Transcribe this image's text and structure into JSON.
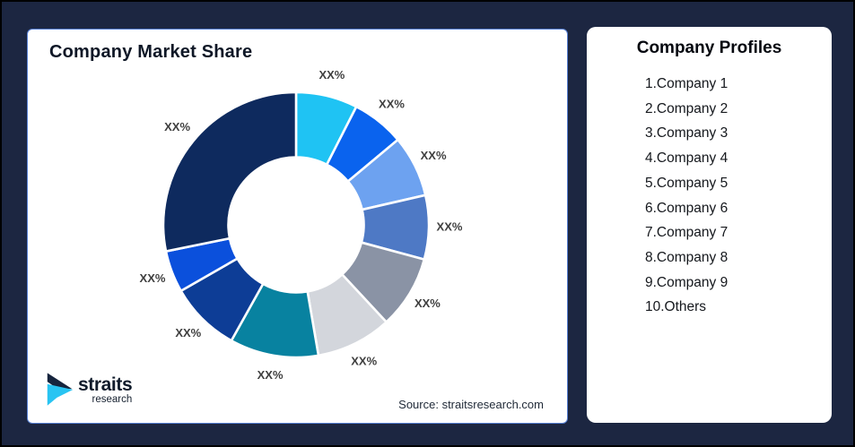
{
  "window": {
    "background": "#1C2641",
    "frame_border": "#000000"
  },
  "market_share_card": {
    "title": "Company Market Share",
    "source_note": "Source: straitsresearch.com",
    "border_color": "#567FD3",
    "logo": {
      "brand": "straits",
      "sub_brand": "research",
      "accent_color": "#29C4F2",
      "dark_color": "#16243D"
    }
  },
  "profiles_card": {
    "title": "Company Profiles",
    "items": [
      "1.Company 1",
      "2.Company 2",
      "3.Company 3",
      "4.Company 4",
      "5.Company 5",
      "6.Company 6",
      "7.Company 7",
      "8.Company 8",
      "9.Company 9",
      "10.Others"
    ]
  },
  "chart_data": {
    "type": "pie",
    "subtype": "donut",
    "title": "Company Market Share",
    "legend": "none",
    "start_angle_deg": 0,
    "direction": "clockwise",
    "inner_radius_ratio": 0.51,
    "label_text_color": "#3F3F3F",
    "segments": [
      {
        "name": "Company 1",
        "label": "XX%",
        "value": 7.5,
        "color": "#1FC3F3"
      },
      {
        "name": "Company 2",
        "label": "XX%",
        "value": 6.4,
        "color": "#0A63EE"
      },
      {
        "name": "Company 3",
        "label": "XX%",
        "value": 7.5,
        "color": "#6DA2F0"
      },
      {
        "name": "Company 4",
        "label": "XX%",
        "value": 7.8,
        "color": "#4E79C5"
      },
      {
        "name": "Company 5",
        "label": "XX%",
        "value": 8.9,
        "color": "#8A93A5"
      },
      {
        "name": "Company 6",
        "label": "XX%",
        "value": 9.2,
        "color": "#D3D6DC"
      },
      {
        "name": "Company 7",
        "label": "XX%",
        "value": 10.8,
        "color": "#0882A0"
      },
      {
        "name": "Company 8",
        "label": "XX%",
        "value": 8.6,
        "color": "#0D3D96"
      },
      {
        "name": "Company 9",
        "label": "XX%",
        "value": 5.1,
        "color": "#0B50DC"
      },
      {
        "name": "Others",
        "label": "XX%",
        "value": 28.2,
        "color": "#0E2A5E"
      }
    ]
  }
}
